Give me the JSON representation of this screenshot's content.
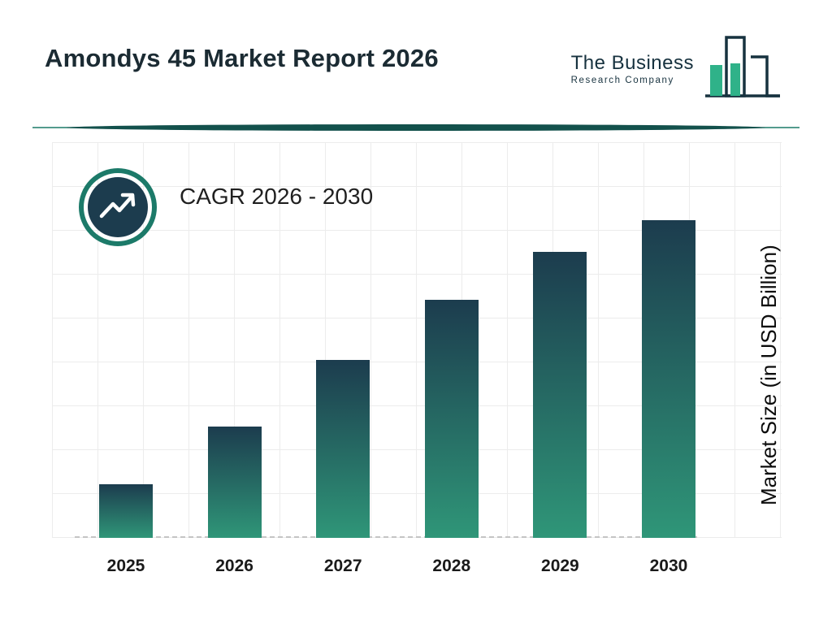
{
  "header": {
    "title": "Amondys 45 Market Report 2026",
    "logo_line1": "The Business",
    "logo_line2": "Research Company"
  },
  "chart": {
    "cagr_label": "CAGR 2026 - 2030",
    "ylabel": "Market Size (in USD Billion)"
  },
  "chart_data": {
    "type": "bar",
    "title": "Amondys 45 Market Report 2026",
    "categories": [
      "2025",
      "2026",
      "2027",
      "2028",
      "2029",
      "2030"
    ],
    "values": [
      17,
      35,
      56,
      75,
      90,
      100
    ],
    "xlabel": "",
    "ylabel": "Market Size (in USD Billion)",
    "ylim": [
      0,
      110
    ],
    "value_units": "relative percent of 2030 bar (no numeric axis labels shown)",
    "grid": true,
    "legend": false,
    "annotations": [
      "CAGR 2026 - 2030"
    ]
  },
  "colors": {
    "bar_top": "#1c3c4e",
    "bar_bottom": "#2f9678",
    "accent_teal": "#1c7a69",
    "dark_navy": "#17323f",
    "title_text": "#1b2b33",
    "grid_line": "#ececec"
  }
}
